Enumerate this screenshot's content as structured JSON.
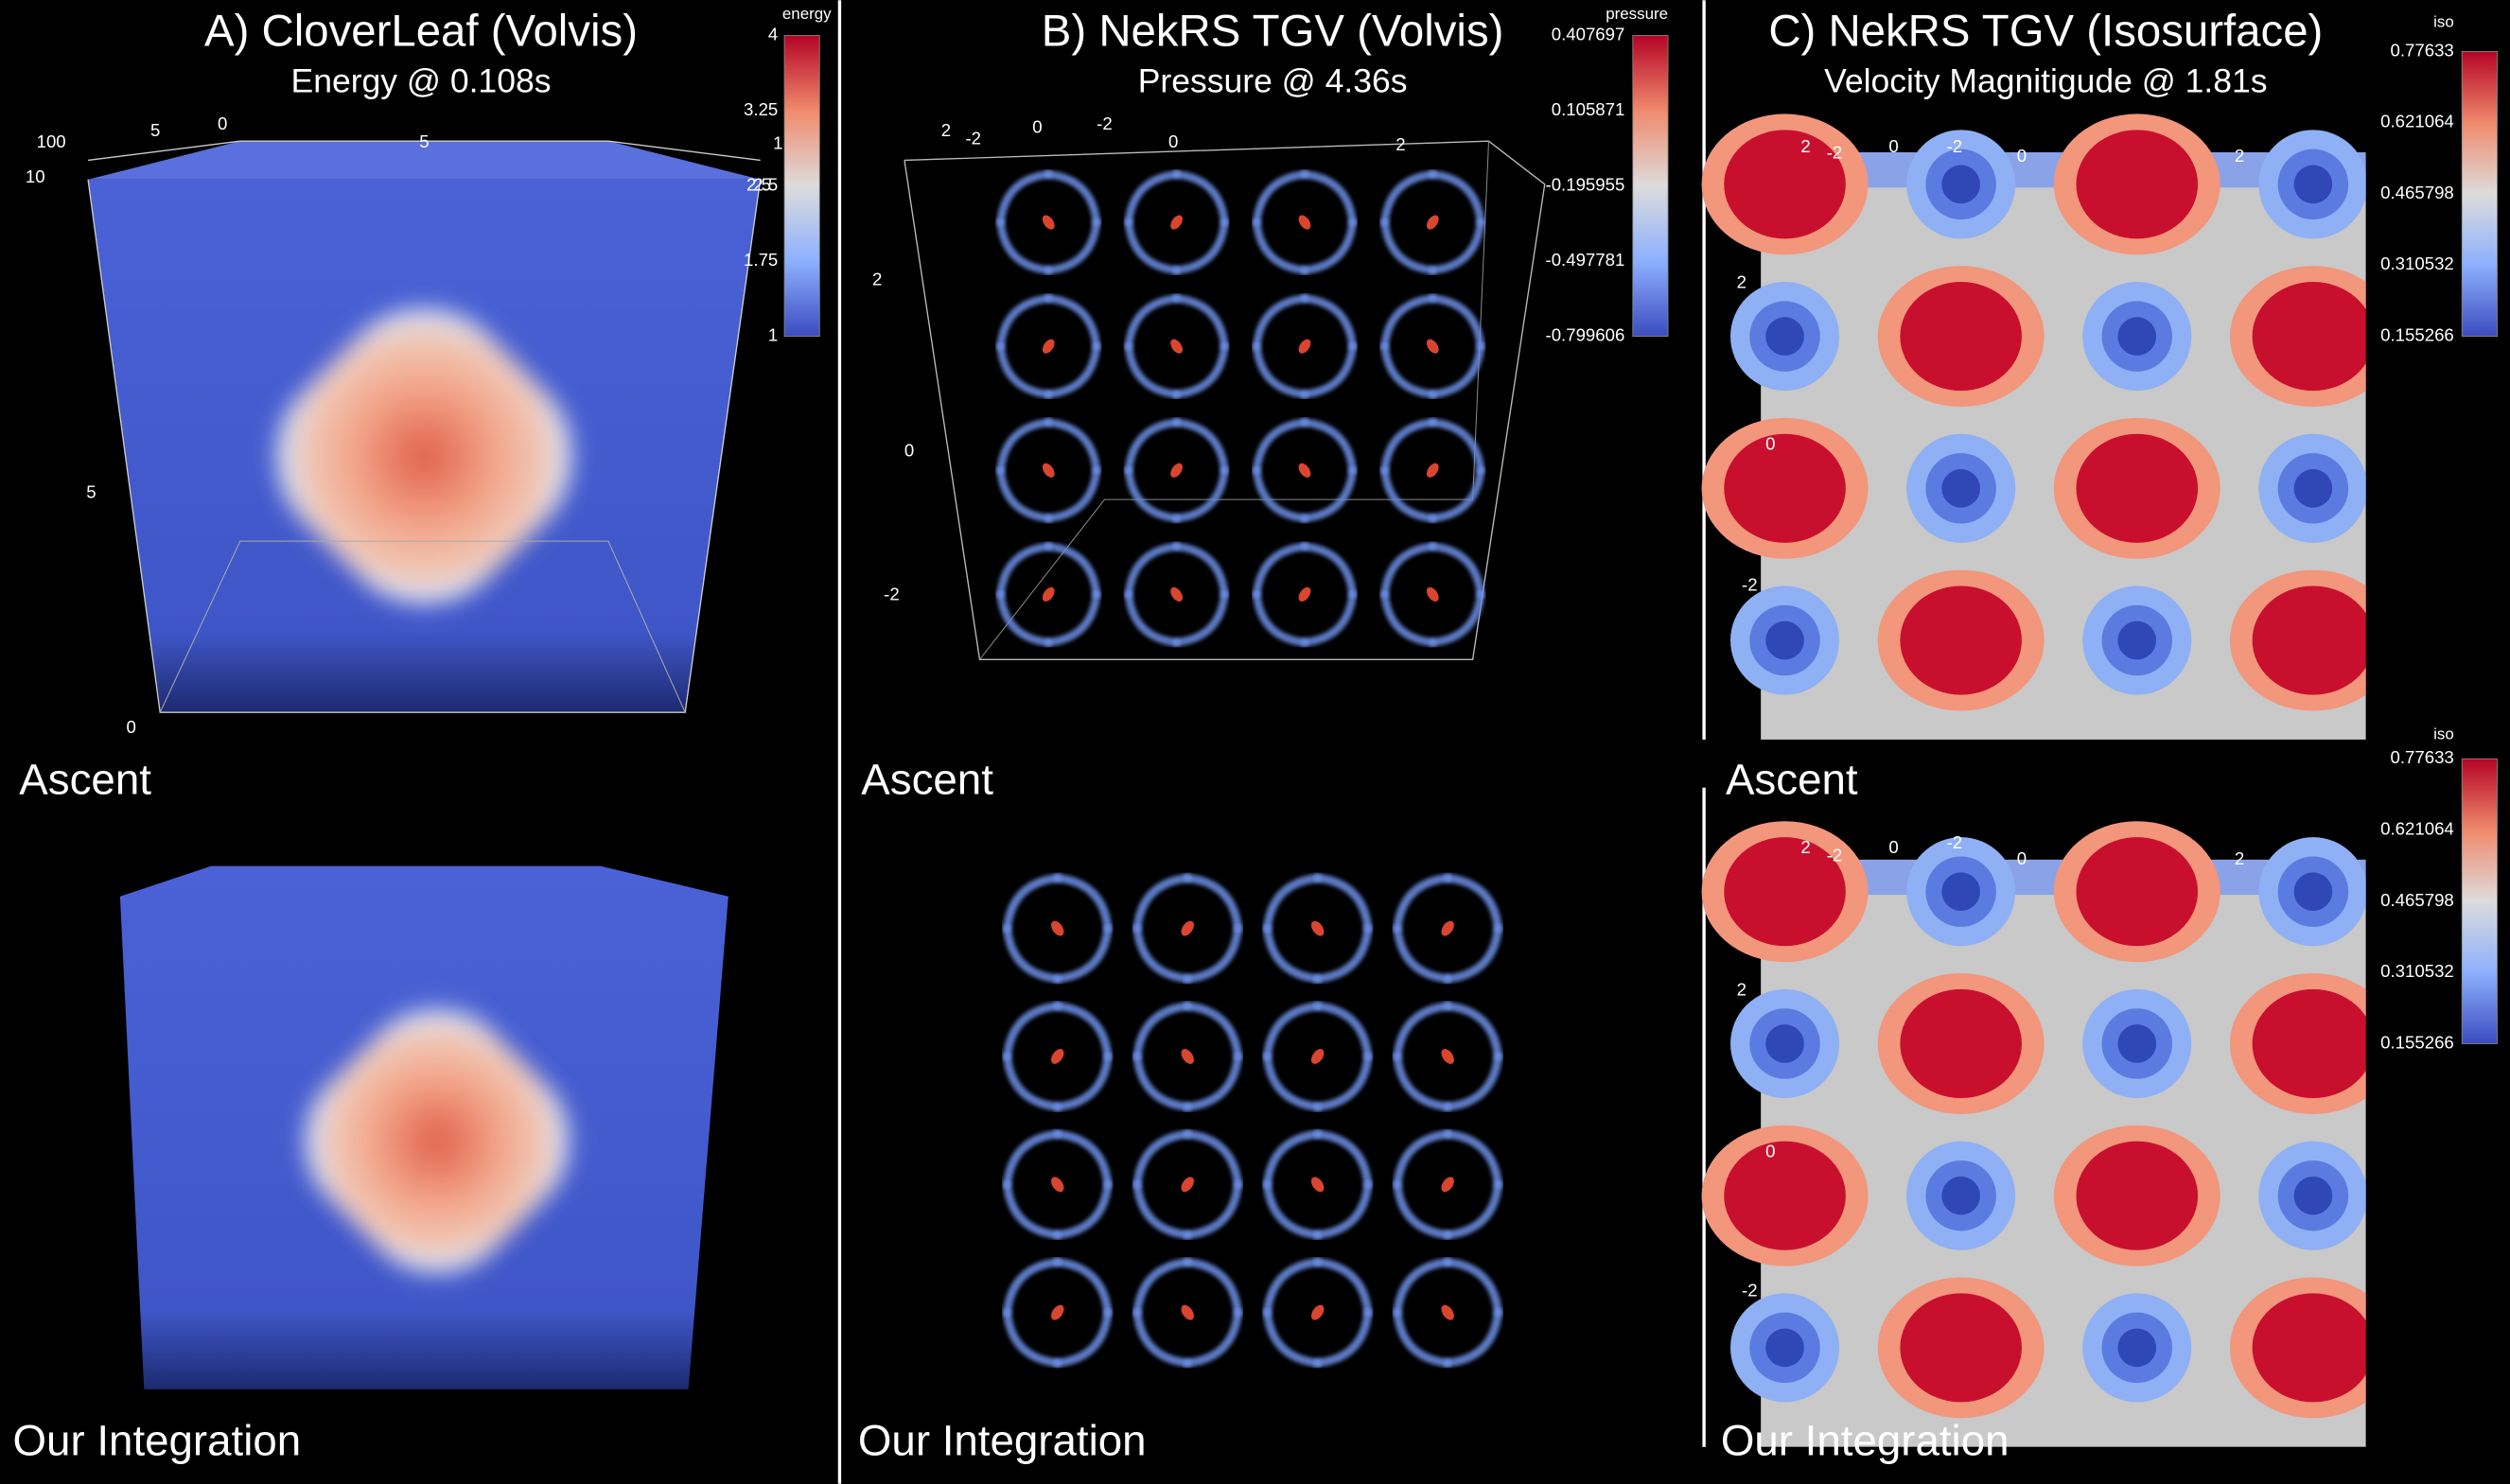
{
  "panels": [
    {
      "title": "A) CloverLeaf (Volvis)",
      "subtitle": "Energy @ 0.108s",
      "colorbar": {
        "label": "energy",
        "ticks": [
          "4",
          "3.25",
          "2.5",
          "1.75",
          "1"
        ]
      },
      "axis_labels": [
        "100",
        "10",
        "5",
        "0",
        "5",
        "1",
        "2.5",
        "5",
        "0"
      ],
      "top_label": "Ascent",
      "bottom_label": "Our Integration"
    },
    {
      "title": "B) NekRS TGV (Volvis)",
      "subtitle": "Pressure @ 4.36s",
      "colorbar": {
        "label": "pressure",
        "ticks": [
          "0.407697",
          "0.105871",
          "-0.195955",
          "-0.497781",
          "-0.799606"
        ]
      },
      "axis_labels": [
        "2",
        "-2",
        "0",
        "-2",
        "0",
        "2",
        "2",
        "0",
        "-2"
      ],
      "top_label": "Ascent",
      "bottom_label": "Our Integration"
    },
    {
      "title": "C) NekRS TGV (Isosurface)",
      "subtitle": "Velocity Magnitigude @ 1.81s",
      "colorbar": {
        "label": "iso",
        "ticks": [
          "0.77633",
          "0.621064",
          "0.465798",
          "0.310532",
          "0.155266"
        ]
      },
      "colorbar_bottom": {
        "label": "iso",
        "ticks": [
          "0.77633",
          "0.621064",
          "0.465798",
          "0.310532",
          "0.155266"
        ]
      },
      "axis_labels": [
        "2",
        "-2",
        "0",
        "-2",
        "0",
        "2",
        "2",
        "0",
        "-2"
      ],
      "axis_labels_bottom": [
        "2",
        "-2",
        "0",
        "-2",
        "0",
        "2",
        "2",
        "0",
        "-2"
      ],
      "top_label": "Ascent",
      "bottom_label": "Our Integration"
    }
  ]
}
